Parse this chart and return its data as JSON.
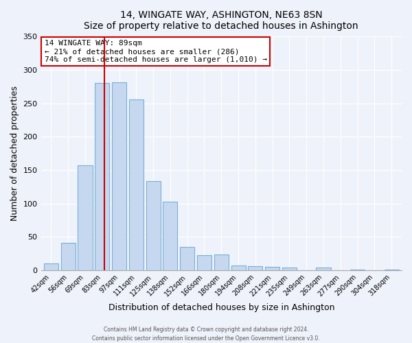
{
  "title": "14, WINGATE WAY, ASHINGTON, NE63 8SN",
  "subtitle": "Size of property relative to detached houses in Ashington",
  "xlabel": "Distribution of detached houses by size in Ashington",
  "ylabel": "Number of detached properties",
  "bar_labels": [
    "42sqm",
    "56sqm",
    "69sqm",
    "83sqm",
    "97sqm",
    "111sqm",
    "125sqm",
    "138sqm",
    "152sqm",
    "166sqm",
    "180sqm",
    "194sqm",
    "208sqm",
    "221sqm",
    "235sqm",
    "249sqm",
    "263sqm",
    "277sqm",
    "290sqm",
    "304sqm",
    "318sqm"
  ],
  "bar_values": [
    10,
    41,
    157,
    280,
    281,
    256,
    133,
    103,
    35,
    22,
    23,
    7,
    6,
    5,
    4,
    0,
    4,
    0,
    1,
    0,
    1
  ],
  "bar_color": "#c5d8f0",
  "bar_edge_color": "#7bafd4",
  "property_line_index": 3,
  "property_line_color": "#cc0000",
  "annotation_title": "14 WINGATE WAY: 89sqm",
  "annotation_line1": "← 21% of detached houses are smaller (286)",
  "annotation_line2": "74% of semi-detached houses are larger (1,010) →",
  "annotation_box_color": "#ffffff",
  "annotation_box_edge": "#cc0000",
  "ylim": [
    0,
    350
  ],
  "yticks": [
    0,
    50,
    100,
    150,
    200,
    250,
    300,
    350
  ],
  "footer1": "Contains HM Land Registry data © Crown copyright and database right 2024.",
  "footer2": "Contains public sector information licensed under the Open Government Licence v3.0.",
  "bg_color": "#eef2fa"
}
